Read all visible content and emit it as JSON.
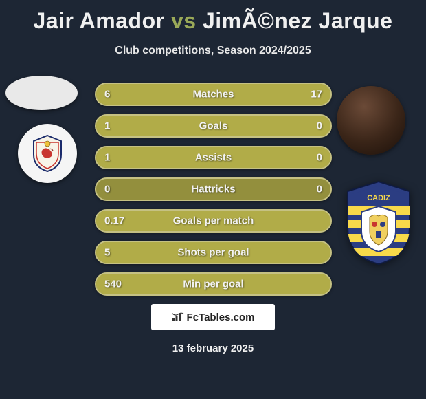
{
  "title": {
    "player1": "Jair Amador",
    "vs": "vs",
    "player2": "JimÃ©nez Jarque",
    "color_player": "#f0f0f0",
    "color_vs": "#9aa958"
  },
  "subtitle": "Club competitions, Season 2024/2025",
  "background_color": "#1d2634",
  "stats": {
    "bar_bg": "#938f3d",
    "bar_fill": "#b1ac48",
    "bar_border": "#c5c183",
    "text_color": "#f2f2f2",
    "label_fontsize": 15,
    "rows": [
      {
        "label": "Matches",
        "left": "6",
        "right": "17",
        "left_pct": 26,
        "right_pct": 74
      },
      {
        "label": "Goals",
        "left": "1",
        "right": "0",
        "left_pct": 100,
        "right_pct": 0
      },
      {
        "label": "Assists",
        "left": "1",
        "right": "0",
        "left_pct": 100,
        "right_pct": 0
      },
      {
        "label": "Hattricks",
        "left": "0",
        "right": "0",
        "left_pct": 0,
        "right_pct": 0
      },
      {
        "label": "Goals per match",
        "left": "0.17",
        "right": "",
        "left_pct": 100,
        "right_pct": 0
      },
      {
        "label": "Shots per goal",
        "left": "5",
        "right": "",
        "left_pct": 100,
        "right_pct": 0
      },
      {
        "label": "Min per goal",
        "left": "540",
        "right": "",
        "left_pct": 100,
        "right_pct": 0
      }
    ]
  },
  "watermark": {
    "text": "FcTables.com",
    "bg": "#ffffff",
    "text_color": "#222222"
  },
  "date": "13 february 2025",
  "club_right_colors": {
    "shield_outer": "#2b3d82",
    "shield_stripe": "#f8d94a",
    "inner_bg": "#ffffff"
  }
}
